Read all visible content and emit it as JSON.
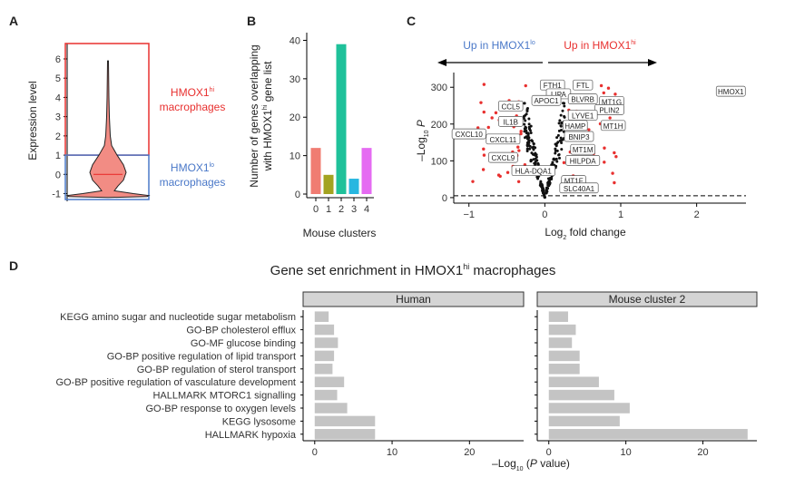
{
  "panels": {
    "a": "A",
    "b": "B",
    "c": "C",
    "d": "D"
  },
  "colors": {
    "hi": "#e8302f",
    "lo": "#4a78c8",
    "violin_fill": "#f28c84",
    "enrich_bar": "#c4c4c4",
    "strip_fill": "#d4d4d4"
  },
  "chart_data": [
    {
      "id": "A",
      "type": "violin",
      "ylabel": "Expression level",
      "y_ticks": [
        "-1",
        "0",
        "1",
        "2",
        "3",
        "4",
        "5",
        "6"
      ],
      "ylim": [
        -1.4,
        6.8
      ],
      "violin_max": 5.9,
      "violin_min": -1.2,
      "median": 0,
      "threshold": 1,
      "hi_label": [
        "HMOX1",
        "hi",
        "macrophages"
      ],
      "lo_label": [
        "HMOX1",
        "lo",
        "macrophages"
      ]
    },
    {
      "id": "B",
      "type": "bar",
      "ylabel": [
        "Number of genes overlapping",
        "with HMOX1",
        "hi",
        " gene list"
      ],
      "xlabel": "Mouse clusters",
      "categories": [
        "0",
        "1",
        "2",
        "3",
        "4"
      ],
      "values": [
        12,
        5,
        39,
        4,
        12
      ],
      "bar_colors": [
        "#f07c72",
        "#a3a320",
        "#1fc19a",
        "#27b7e0",
        "#e56bf2"
      ],
      "y_ticks": [
        "0",
        "10",
        "20",
        "30",
        "40"
      ],
      "ylim": [
        0,
        42
      ]
    },
    {
      "id": "C",
      "type": "scatter",
      "ylabel_parts": [
        "–Log",
        "10",
        " P"
      ],
      "xlabel_parts": [
        "Log",
        "2",
        " fold change"
      ],
      "x_ticks": [
        "−1",
        "0",
        "1",
        "2"
      ],
      "y_ticks": [
        "0",
        "100",
        "200",
        "300"
      ],
      "xlim": [
        -1.2,
        2.65
      ],
      "ylim": [
        -15,
        340
      ],
      "up_lo_parts": [
        "Up in HMOX1",
        "lo"
      ],
      "up_hi_parts": [
        "Up in HMOX1",
        "hi"
      ],
      "labeled_genes": [
        {
          "name": "HMOX1",
          "x": 2.45,
          "y": 288
        },
        {
          "name": "FTH1",
          "x": 0.1,
          "y": 305
        },
        {
          "name": "FTL",
          "x": 0.5,
          "y": 305
        },
        {
          "name": "LIPA",
          "x": 0.18,
          "y": 281
        },
        {
          "name": "APOC1",
          "x": 0.02,
          "y": 263
        },
        {
          "name": "BLVRB",
          "x": 0.5,
          "y": 267
        },
        {
          "name": "MT1G",
          "x": 0.88,
          "y": 260
        },
        {
          "name": "CCL5",
          "x": -0.45,
          "y": 248
        },
        {
          "name": "PLIN2",
          "x": 0.85,
          "y": 238
        },
        {
          "name": "LYVE1",
          "x": 0.5,
          "y": 223
        },
        {
          "name": "IL1B",
          "x": -0.45,
          "y": 206
        },
        {
          "name": "HAMP",
          "x": 0.4,
          "y": 195
        },
        {
          "name": "MT1H",
          "x": 0.9,
          "y": 195
        },
        {
          "name": "CXCL10",
          "x": -1.0,
          "y": 172
        },
        {
          "name": "CXCL11",
          "x": -0.55,
          "y": 158
        },
        {
          "name": "BNIP3",
          "x": 0.45,
          "y": 165
        },
        {
          "name": "MT1M",
          "x": 0.5,
          "y": 130
        },
        {
          "name": "CXCL9",
          "x": -0.55,
          "y": 108
        },
        {
          "name": "HILPDA",
          "x": 0.5,
          "y": 100
        },
        {
          "name": "HLA-DQA1",
          "x": -0.15,
          "y": 72
        },
        {
          "name": "MT1F",
          "x": 0.38,
          "y": 45
        },
        {
          "name": "SLC40A1",
          "x": 0.45,
          "y": 25
        }
      ]
    },
    {
      "id": "D",
      "type": "bar",
      "orientation": "horizontal",
      "title_parts": [
        "Gene set enrichment in HMOX1",
        "hi",
        " macrophages"
      ],
      "categories": [
        "KEGG amino sugar and nucleotide sugar metabolism",
        "GO-BP cholesterol efflux",
        "GO-MF glucose binding",
        "GO-BP positive regulation of lipid transport",
        "GO-BP regulation of sterol transport",
        "GO-BP positive regulation of vasculature development",
        "HALLMARK MTORC1 signalling",
        "GO-BP response to oxygen levels",
        "KEGG lysosome",
        "HALLMARK hypoxia"
      ],
      "facets": [
        {
          "name": "Human",
          "values": [
            1.8,
            2.5,
            3.0,
            2.5,
            2.3,
            3.8,
            2.9,
            4.2,
            7.8,
            7.8
          ]
        },
        {
          "name": "Mouse cluster 2",
          "values": [
            2.5,
            3.5,
            3.0,
            4.0,
            4.0,
            6.5,
            8.5,
            10.5,
            9.2,
            25.8
          ]
        }
      ],
      "xlabel_parts": [
        "–Log",
        "10",
        " (",
        "P",
        " value)"
      ],
      "x_ticks": [
        "0",
        "10",
        "20"
      ],
      "xlim": [
        -1.5,
        27
      ]
    }
  ]
}
